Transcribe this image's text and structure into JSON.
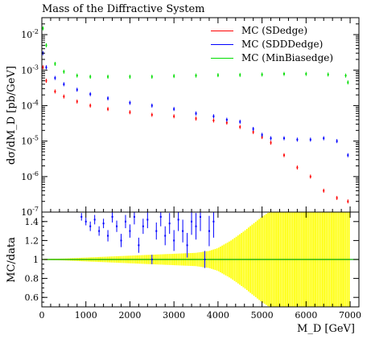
{
  "chart_data": [
    {
      "type": "scatter",
      "title": "Mass of the Diffractive System",
      "ylabel": "dσ/dM_D [pb/GeV]",
      "xlim": [
        0,
        7200
      ],
      "ylim": [
        1e-07,
        0.03
      ],
      "yscale": "log",
      "ytick_labels": [
        "10^{-7}",
        "10^{-6}",
        "10^{-5}",
        "10^{-4}",
        "10^{-3}",
        "10^{-2}"
      ],
      "legend_position": "top-right",
      "series": [
        {
          "name": "MC (SDedge)",
          "color": "#ff0000",
          "x": [
            25,
            100,
            300,
            500,
            800,
            1100,
            1500,
            2000,
            2500,
            3000,
            3500,
            3900,
            4200,
            4500,
            4800,
            5000,
            5200,
            5500,
            5800,
            6100,
            6400,
            6700,
            6950
          ],
          "y": [
            0.0012,
            0.0005,
            0.00025,
            0.00018,
            0.00013,
            0.0001,
            8e-05,
            6.5e-05,
            5.5e-05,
            5e-05,
            4.3e-05,
            3.8e-05,
            3.3e-05,
            2.5e-05,
            1.8e-05,
            1.3e-05,
            9e-06,
            4e-06,
            1.8e-06,
            1e-06,
            4e-07,
            2.5e-07,
            2e-07
          ]
        },
        {
          "name": "MC (SDDDedge)",
          "color": "#0000ff",
          "x": [
            25,
            100,
            300,
            500,
            800,
            1100,
            1500,
            2000,
            2500,
            3000,
            3500,
            3900,
            4200,
            4500,
            4800,
            5000,
            5200,
            5500,
            5800,
            6100,
            6400,
            6700,
            6950
          ],
          "y": [
            0.003,
            0.0012,
            0.0006,
            0.0004,
            0.00028,
            0.00021,
            0.00016,
            0.00012,
            0.0001,
            8e-05,
            6e-05,
            5e-05,
            4e-05,
            3.5e-05,
            2.2e-05,
            1.5e-05,
            1.2e-05,
            1.2e-05,
            1.1e-05,
            1.1e-05,
            1.2e-05,
            1e-05,
            4e-06
          ]
        },
        {
          "name": "MC (MinBiasedge)",
          "color": "#00dd00",
          "x": [
            25,
            100,
            300,
            500,
            800,
            1100,
            1500,
            2000,
            2500,
            3000,
            3500,
            4000,
            4500,
            5000,
            5500,
            6000,
            6500,
            6900,
            6950
          ],
          "y": [
            0.015,
            0.005,
            0.0015,
            0.0009,
            0.0007,
            0.00065,
            0.00065,
            0.00065,
            0.00065,
            0.00068,
            0.0007,
            0.00072,
            0.00073,
            0.00075,
            0.00078,
            0.00078,
            0.00075,
            0.0007,
            0.00045
          ]
        }
      ]
    },
    {
      "type": "scatter",
      "ylabel": "MC/data",
      "xlabel": "M_D [GeV]",
      "xlim": [
        0,
        7200
      ],
      "ylim": [
        0.5,
        1.5
      ],
      "xtick_labels": [
        "0",
        "1000",
        "2000",
        "3000",
        "4000",
        "5000",
        "6000",
        "7000"
      ],
      "ytick_labels": [
        "0.6",
        "0.8",
        "1",
        "1.2",
        "1.4"
      ],
      "band_color": "#ffff00",
      "band": {
        "x": [
          0,
          500,
          1000,
          1500,
          2000,
          2500,
          3000,
          3500,
          3800,
          4000,
          4300,
          4600,
          5000,
          5500,
          6000,
          6500,
          7000
        ],
        "halfwidth": [
          0.005,
          0.01,
          0.02,
          0.03,
          0.04,
          0.05,
          0.06,
          0.07,
          0.09,
          0.12,
          0.2,
          0.3,
          0.45,
          0.6,
          0.6,
          0.6,
          0.6
        ]
      },
      "reference_line": {
        "y": 1,
        "color": "#00aa00"
      },
      "series": [
        {
          "name": "MC (SDDDedge)",
          "color": "#0000ff",
          "x": [
            900,
            1000,
            1100,
            1200,
            1300,
            1400,
            1500,
            1600,
            1700,
            1800,
            1900,
            2000,
            2100,
            2200,
            2300,
            2400,
            2500,
            2600,
            2700,
            2800,
            2900,
            3000,
            3100,
            3200,
            3300,
            3400,
            3500,
            3600,
            3700,
            3800,
            3900
          ],
          "y": [
            1.45,
            1.4,
            1.35,
            1.42,
            1.3,
            1.38,
            1.25,
            1.45,
            1.35,
            1.2,
            1.4,
            1.3,
            1.45,
            1.15,
            1.35,
            1.42,
            1.0,
            1.3,
            1.45,
            1.25,
            1.38,
            1.2,
            1.42,
            1.3,
            1.15,
            1.4,
            1.35,
            1.45,
            1.0,
            1.3,
            1.4
          ],
          "err": [
            0.04,
            0.04,
            0.05,
            0.05,
            0.05,
            0.05,
            0.06,
            0.06,
            0.06,
            0.07,
            0.07,
            0.07,
            0.08,
            0.08,
            0.08,
            0.09,
            0.05,
            0.09,
            0.1,
            0.1,
            0.11,
            0.11,
            0.12,
            0.12,
            0.13,
            0.14,
            0.14,
            0.15,
            0.09,
            0.16,
            0.17
          ]
        }
      ]
    }
  ]
}
